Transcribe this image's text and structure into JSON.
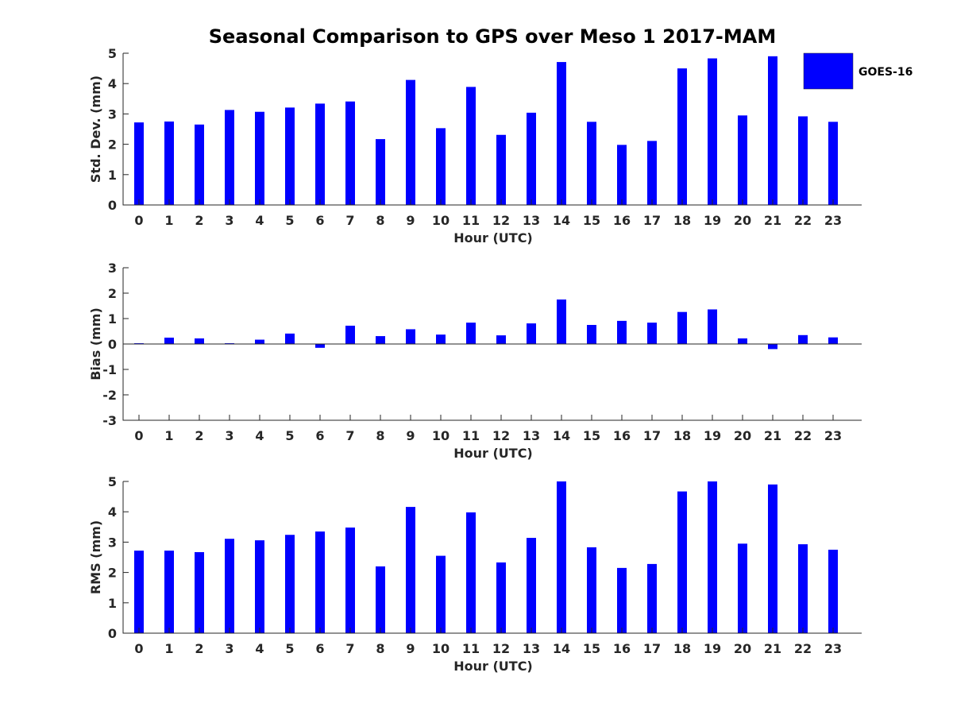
{
  "chart_data": {
    "title": "Seasonal Comparison to GPS over Meso 1 2017-MAM",
    "legend": {
      "label": "GOES-16",
      "color": "#0000ff",
      "placement": "top-right"
    },
    "bar_color": "#0000ff",
    "categories": [
      "0",
      "1",
      "2",
      "3",
      "4",
      "5",
      "6",
      "7",
      "8",
      "9",
      "10",
      "11",
      "12",
      "13",
      "14",
      "15",
      "16",
      "17",
      "18",
      "19",
      "20",
      "21",
      "22",
      "23"
    ],
    "panels": [
      {
        "type": "bar",
        "series_name": "GOES-16",
        "xlabel": "Hour (UTC)",
        "ylabel": "Std. Dev. (mm)",
        "ylim": [
          0,
          5
        ],
        "yticks": [
          "0",
          "1",
          "2",
          "3",
          "4",
          "5"
        ],
        "values": [
          2.72,
          2.75,
          2.65,
          3.13,
          3.07,
          3.21,
          3.34,
          3.41,
          2.17,
          4.12,
          2.53,
          3.89,
          2.31,
          3.04,
          4.71,
          2.74,
          1.98,
          2.11,
          4.5,
          4.83,
          2.95,
          4.9,
          2.92,
          2.74
        ]
      },
      {
        "type": "bar",
        "series_name": "GOES-16",
        "xlabel": "Hour (UTC)",
        "ylabel": "Bias (mm)",
        "ylim": [
          -3,
          3
        ],
        "yticks": [
          "-3",
          "-2",
          "-1",
          "0",
          "1",
          "2",
          "3"
        ],
        "values": [
          0.03,
          0.25,
          0.22,
          0.03,
          0.17,
          0.41,
          -0.15,
          0.72,
          0.31,
          0.58,
          0.37,
          0.84,
          0.34,
          0.81,
          1.75,
          0.75,
          0.91,
          0.84,
          1.26,
          1.36,
          0.22,
          -0.2,
          0.35,
          0.26
        ]
      },
      {
        "type": "bar",
        "series_name": "GOES-16",
        "xlabel": "Hour (UTC)",
        "ylabel": "RMS (mm)",
        "ylim": [
          0,
          5
        ],
        "yticks": [
          "0",
          "1",
          "2",
          "3",
          "4",
          "5"
        ],
        "values": [
          2.72,
          2.72,
          2.67,
          3.11,
          3.06,
          3.24,
          3.35,
          3.48,
          2.2,
          4.16,
          2.55,
          3.98,
          2.33,
          3.14,
          5.0,
          2.83,
          2.15,
          2.28,
          4.67,
          5.0,
          2.95,
          4.9,
          2.93,
          2.75
        ]
      }
    ]
  }
}
